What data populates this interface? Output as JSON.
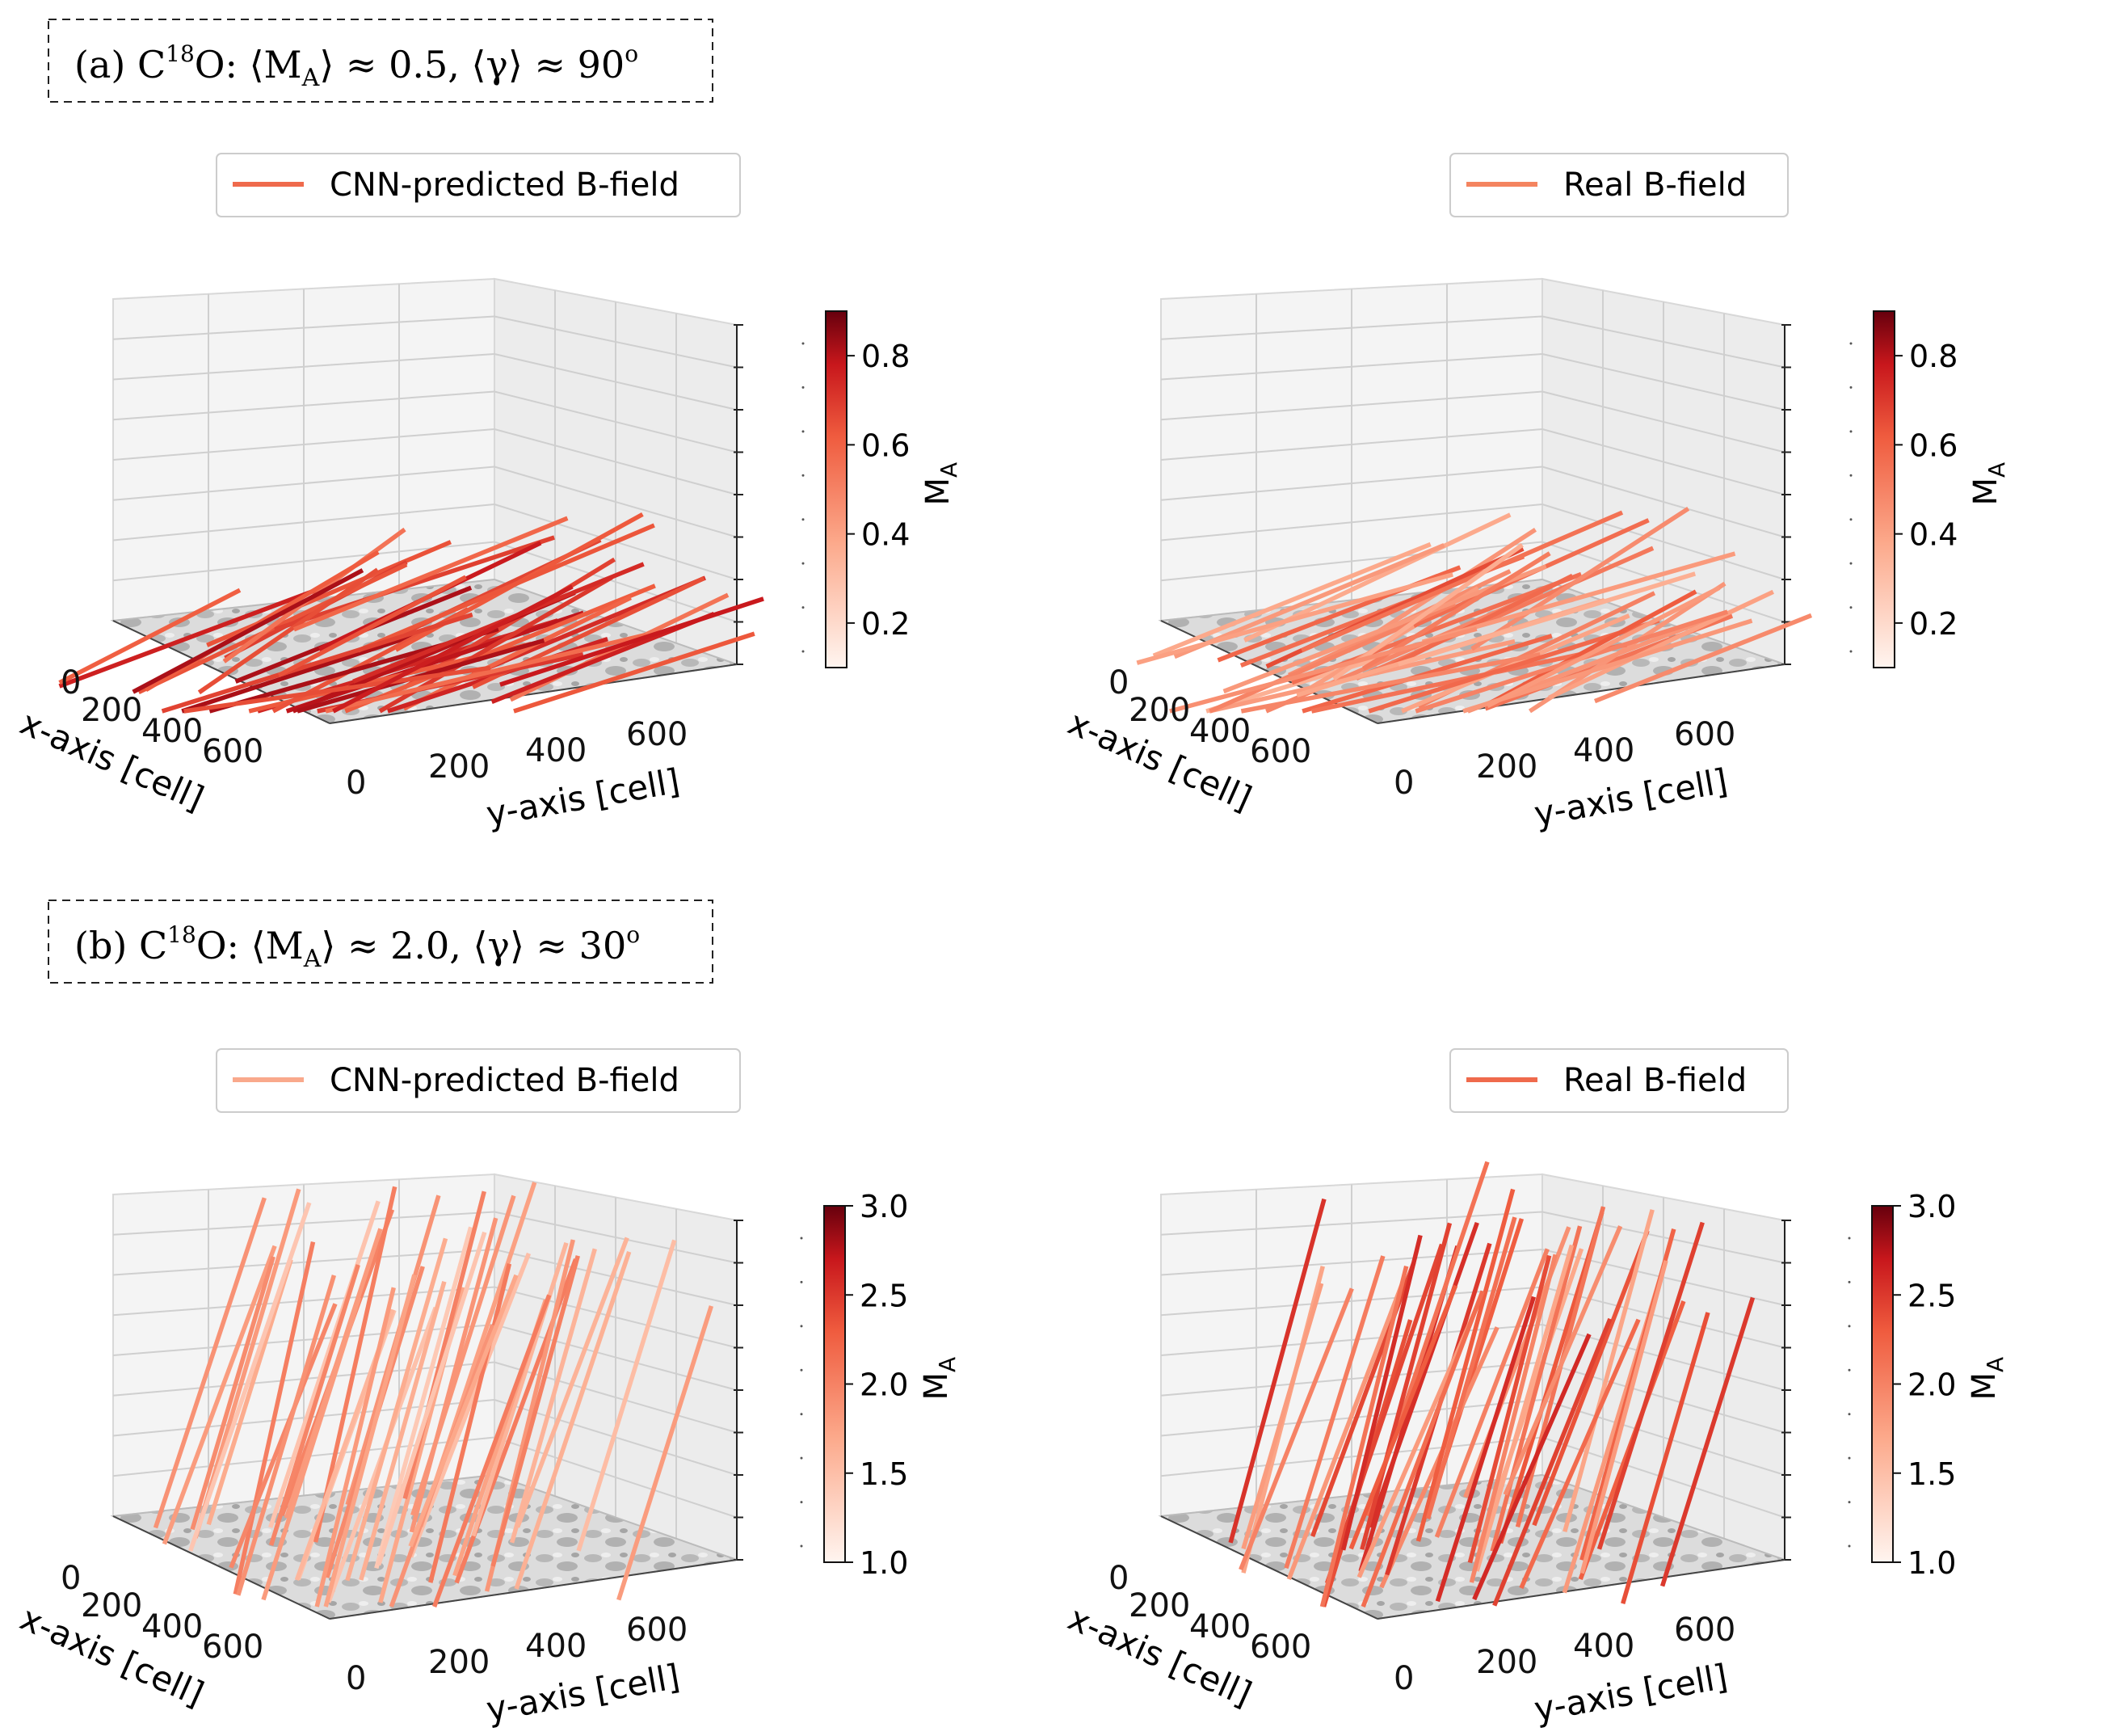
{
  "panels": [
    {
      "label": {
        "prefix": "(a) C",
        "superscript": "18",
        "suffix": "O: ⟨M",
        "ma_subscript": "A",
        "mid": "⟩ ≈ 0.5, ⟨γ⟩ ≈ 90",
        "degree": "o"
      }
    },
    {
      "label": {
        "prefix": "(b) C",
        "superscript": "18",
        "suffix": "O: ⟨M",
        "ma_subscript": "A",
        "mid": "⟩ ≈ 2.0, ⟨γ⟩ ≈ 30",
        "degree": "o"
      }
    }
  ],
  "chart_data": [
    {
      "type": "3d-vector-field",
      "panel": "a",
      "legend": "CNN-predicted B-field",
      "legend_color": "#ef6a4c",
      "xlabel": "x-axis [cell]",
      "ylabel": "y-axis [cell]",
      "x_ticks": [
        "0",
        "200",
        "400",
        "600"
      ],
      "y_ticks": [
        "0",
        "200",
        "400",
        "600"
      ],
      "colorbar": {
        "label": "M",
        "label_sub": "A",
        "range": [
          0.1,
          0.9
        ],
        "ticks": [
          "0.2",
          "0.4",
          "0.6",
          "0.8"
        ],
        "tick_values": [
          0.2,
          0.4,
          0.6,
          0.8
        ]
      },
      "mean_MA": 0.5,
      "mean_gamma_deg": 90
    },
    {
      "type": "3d-vector-field",
      "panel": "a",
      "legend": "Real B-field",
      "legend_color": "#f4845f",
      "xlabel": "x-axis [cell]",
      "ylabel": "y-axis [cell]",
      "x_ticks": [
        "0",
        "200",
        "400",
        "600"
      ],
      "y_ticks": [
        "0",
        "200",
        "400",
        "600"
      ],
      "colorbar": {
        "label": "M",
        "label_sub": "A",
        "range": [
          0.1,
          0.9
        ],
        "ticks": [
          "0.2",
          "0.4",
          "0.6",
          "0.8"
        ],
        "tick_values": [
          0.2,
          0.4,
          0.6,
          0.8
        ]
      },
      "mean_MA": 0.5,
      "mean_gamma_deg": 90
    },
    {
      "type": "3d-vector-field",
      "panel": "b",
      "legend": "CNN-predicted B-field",
      "legend_color": "#f9a98c",
      "xlabel": "x-axis [cell]",
      "ylabel": "y-axis [cell]",
      "x_ticks": [
        "0",
        "200",
        "400",
        "600"
      ],
      "y_ticks": [
        "0",
        "200",
        "400",
        "600"
      ],
      "colorbar": {
        "label": "M",
        "label_sub": "A",
        "range": [
          1.0,
          3.0
        ],
        "ticks": [
          "1.0",
          "1.5",
          "2.0",
          "2.5",
          "3.0"
        ],
        "tick_values": [
          1.0,
          1.5,
          2.0,
          2.5,
          3.0
        ]
      },
      "mean_MA": 2.0,
      "mean_gamma_deg": 30
    },
    {
      "type": "3d-vector-field",
      "panel": "b",
      "legend": "Real B-field",
      "legend_color": "#ef6a4c",
      "xlabel": "x-axis [cell]",
      "ylabel": "y-axis [cell]",
      "x_ticks": [
        "0",
        "200",
        "400",
        "600"
      ],
      "y_ticks": [
        "0",
        "200",
        "400",
        "600"
      ],
      "colorbar": {
        "label": "M",
        "label_sub": "A",
        "range": [
          1.0,
          3.0
        ],
        "ticks": [
          "1.0",
          "1.5",
          "2.0",
          "2.5",
          "3.0"
        ],
        "tick_values": [
          1.0,
          1.5,
          2.0,
          2.5,
          3.0
        ]
      },
      "mean_MA": 2.0,
      "mean_gamma_deg": 30
    }
  ]
}
